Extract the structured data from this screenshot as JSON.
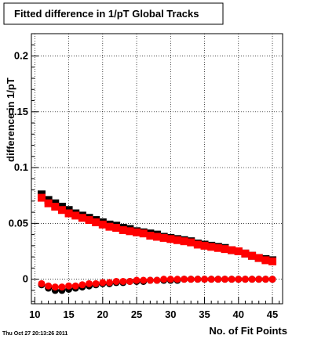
{
  "chart_data": {
    "type": "scatter",
    "title": "Fitted difference in 1/pT  Global Tracks",
    "xlabel": "No. of Fit Points",
    "ylabel": "difference in 1/pT",
    "xlim": [
      9.5,
      46.5
    ],
    "ylim": [
      -0.022,
      0.22
    ],
    "x_ticks": [
      10,
      15,
      20,
      25,
      30,
      35,
      40,
      45
    ],
    "y_ticks": [
      0,
      0.05,
      0.1,
      0.15,
      0.2
    ],
    "y_tick_labels": [
      "0",
      "0.05",
      "0.1",
      "0.15",
      "0.2"
    ],
    "grid": true,
    "x": [
      11,
      12,
      13,
      14,
      15,
      16,
      17,
      18,
      19,
      20,
      21,
      22,
      23,
      24,
      25,
      26,
      27,
      28,
      29,
      30,
      31,
      32,
      33,
      34,
      35,
      36,
      37,
      38,
      39,
      40,
      41,
      42,
      43,
      44,
      45
    ],
    "series": [
      {
        "marker": "square",
        "color": "#000000",
        "values": [
          0.076,
          0.071,
          0.068,
          0.065,
          0.062,
          0.059,
          0.057,
          0.055,
          0.053,
          0.051,
          0.049,
          0.048,
          0.046,
          0.045,
          0.043,
          0.042,
          0.041,
          0.04,
          0.038,
          0.037,
          0.036,
          0.035,
          0.034,
          0.032,
          0.031,
          0.03,
          0.029,
          0.028,
          0.026,
          0.025,
          0.023,
          0.021,
          0.019,
          0.018,
          0.017
        ]
      },
      {
        "marker": "square",
        "color": "#ff0000",
        "values": [
          0.073,
          0.068,
          0.065,
          0.062,
          0.059,
          0.057,
          0.055,
          0.053,
          0.051,
          0.049,
          0.047,
          0.046,
          0.044,
          0.043,
          0.042,
          0.041,
          0.039,
          0.038,
          0.037,
          0.036,
          0.035,
          0.034,
          0.033,
          0.031,
          0.03,
          0.029,
          0.028,
          0.027,
          0.026,
          0.025,
          0.023,
          0.021,
          0.019,
          0.017,
          0.016
        ]
      },
      {
        "marker": "circle",
        "color": "#000000",
        "values": [
          -0.005,
          -0.008,
          -0.01,
          -0.01,
          -0.009,
          -0.008,
          -0.007,
          -0.006,
          -0.005,
          -0.004,
          -0.004,
          -0.003,
          -0.003,
          -0.002,
          -0.002,
          -0.002,
          -0.001,
          -0.001,
          -0.001,
          -0.001,
          -0.001,
          0.0,
          0.0,
          0.0,
          0.0,
          0.0,
          0.0,
          0.0,
          0.0,
          0.0,
          0.0,
          0.0,
          0.0,
          0.0,
          0.0
        ]
      },
      {
        "marker": "circle",
        "color": "#ff0000",
        "values": [
          -0.004,
          -0.006,
          -0.007,
          -0.007,
          -0.006,
          -0.006,
          -0.005,
          -0.004,
          -0.004,
          -0.003,
          -0.003,
          -0.002,
          -0.002,
          -0.002,
          -0.001,
          -0.001,
          -0.001,
          -0.001,
          0.0,
          0.0,
          0.0,
          0.0,
          0.0,
          0.0,
          0.0,
          0.0,
          0.0,
          0.0,
          0.0,
          0.0,
          0.0,
          0.0,
          0.0,
          0.0,
          0.0
        ]
      }
    ]
  },
  "footer": "Thu Oct 27 20:13:26 2011"
}
